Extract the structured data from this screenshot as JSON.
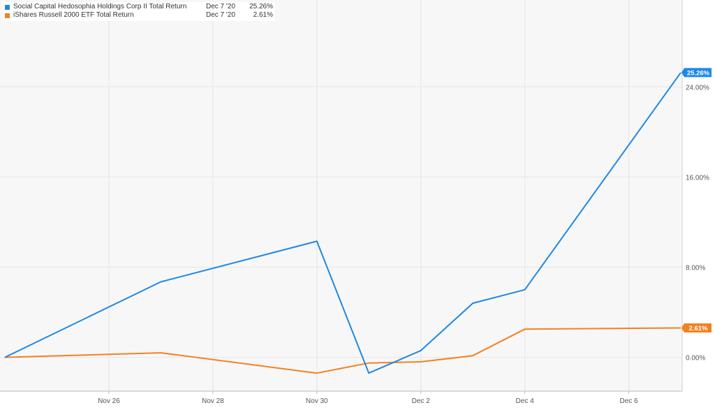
{
  "chart_data": {
    "type": "line",
    "x_ticks": [
      "Nov 26",
      "Nov 28",
      "Nov 30",
      "Dec 2",
      "Dec 4",
      "Dec 6"
    ],
    "y_ticks": [
      "0.00%",
      "8.00%",
      "16.00%",
      "24.00%"
    ],
    "ylim": [
      -3,
      31.7
    ],
    "grid": true,
    "legend_position": "top-left",
    "series": [
      {
        "name": "Social Capital Hedosophia Holdings Corp II Total Return",
        "color": "#1e88e5",
        "legend_date": "Dec 7 '20",
        "legend_value": "25.26%",
        "end_label": "25.26%",
        "x": [
          "Nov 24",
          "Nov 27",
          "Nov 30",
          "Dec 1",
          "Dec 2",
          "Dec 3",
          "Dec 4",
          "Dec 7"
        ],
        "values": [
          0.0,
          6.7,
          10.3,
          -1.4,
          0.6,
          4.8,
          6.0,
          25.26
        ]
      },
      {
        "name": "iShares Russell 2000 ETF Total Return",
        "color": "#f48120",
        "legend_date": "Dec 7 '20",
        "legend_value": "2.61%",
        "end_label": "2.61%",
        "x": [
          "Nov 24",
          "Nov 27",
          "Nov 30",
          "Dec 1",
          "Dec 2",
          "Dec 3",
          "Dec 4",
          "Dec 7"
        ],
        "values": [
          0.0,
          0.4,
          -1.4,
          -0.5,
          -0.4,
          0.15,
          2.5,
          2.61
        ]
      }
    ]
  }
}
